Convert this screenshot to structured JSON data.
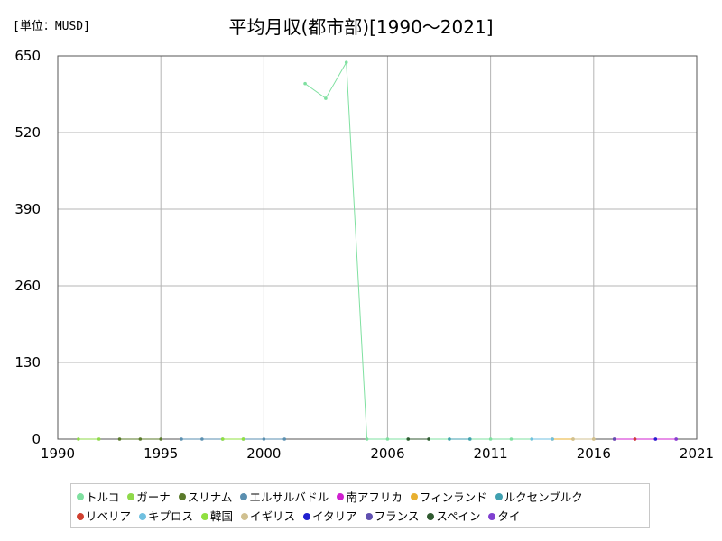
{
  "unit_label": "[単位：MUSD]",
  "chart_data": {
    "type": "line",
    "title": "平均月収(都市部)[1990～2021]",
    "xlabel": "",
    "ylabel": "",
    "xlim": [
      1990,
      2021
    ],
    "ylim": [
      0,
      650
    ],
    "x_ticks": [
      1990,
      1995,
      2000,
      2006,
      2011,
      2016,
      2021
    ],
    "y_ticks": [
      0,
      130,
      260,
      390,
      520,
      650
    ],
    "grid": true,
    "legend_position": "bottom",
    "series": [
      {
        "name": "トルコ",
        "color": "#7fe0a0",
        "points": [
          [
            2002,
            603
          ],
          [
            2003,
            578
          ],
          [
            2004,
            639
          ],
          [
            2005,
            0
          ],
          [
            2006,
            0
          ],
          [
            2007,
            0
          ],
          [
            2008,
            0
          ],
          [
            2009,
            0
          ],
          [
            2010,
            0
          ],
          [
            2011,
            0
          ],
          [
            2012,
            0
          ],
          [
            2013,
            0
          ]
        ]
      },
      {
        "name": "ガーナ",
        "color": "#8fd94a",
        "points": [
          [
            1991,
            0
          ],
          [
            1992,
            0
          ]
        ]
      },
      {
        "name": "スリナム",
        "color": "#5a7a2a",
        "points": [
          [
            1993,
            0
          ],
          [
            1994,
            0
          ],
          [
            1995,
            0
          ]
        ]
      },
      {
        "name": "エルサルバドル",
        "color": "#5a8fb0",
        "points": [
          [
            1996,
            0
          ],
          [
            1997,
            0
          ],
          [
            1998,
            0
          ],
          [
            1999,
            0
          ],
          [
            2000,
            0
          ],
          [
            2001,
            0
          ]
        ]
      },
      {
        "name": "南アフリカ",
        "color": "#d020d0",
        "points": [
          [
            2017,
            0
          ],
          [
            2018,
            0
          ],
          [
            2019,
            0
          ],
          [
            2020,
            0
          ]
        ]
      },
      {
        "name": "フィンランド",
        "color": "#e8b030",
        "points": [
          [
            2014,
            0
          ],
          [
            2015,
            0
          ],
          [
            2016,
            0
          ]
        ]
      },
      {
        "name": "ルクセンブルク",
        "color": "#40a0b0",
        "points": [
          [
            2009,
            0
          ],
          [
            2010,
            0
          ]
        ]
      },
      {
        "name": "リベリア",
        "color": "#d04030",
        "points": [
          [
            2018,
            0
          ]
        ]
      },
      {
        "name": "キプロス",
        "color": "#70c0e0",
        "points": [
          [
            2013,
            0
          ],
          [
            2014,
            0
          ]
        ]
      },
      {
        "name": "韓国",
        "color": "#90e040",
        "points": [
          [
            1998,
            0
          ],
          [
            1999,
            0
          ]
        ]
      },
      {
        "name": "イギリス",
        "color": "#d0c090",
        "points": [
          [
            2015,
            0
          ],
          [
            2016,
            0
          ]
        ]
      },
      {
        "name": "イタリア",
        "color": "#2020d0",
        "points": [
          [
            2019,
            0
          ]
        ]
      },
      {
        "name": "フランス",
        "color": "#6050b0",
        "points": [
          [
            2017,
            0
          ]
        ]
      },
      {
        "name": "スペイン",
        "color": "#305a30",
        "points": [
          [
            2007,
            0
          ],
          [
            2008,
            0
          ]
        ]
      },
      {
        "name": "タイ",
        "color": "#8040d0",
        "points": [
          [
            2020,
            0
          ]
        ]
      }
    ]
  }
}
